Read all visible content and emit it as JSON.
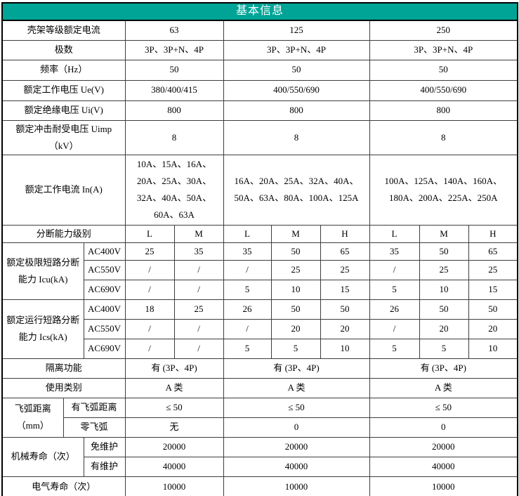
{
  "theme": {
    "header_bg": "#00A496",
    "header_text": "#ffffff",
    "border_color": "#3d3d3d",
    "outer_border": "#000000",
    "text_color": "#000000",
    "page_bg": "#ffffff"
  },
  "table": {
    "title": "基本信息",
    "frame_ratings": [
      "63",
      "125",
      "250"
    ],
    "rows": [
      [
        {
          "t": "壳架等级额定电流",
          "c": 3,
          "cls": "label"
        },
        {
          "t": "63",
          "c": 2
        },
        {
          "t": "125",
          "c": 3
        },
        {
          "t": "250",
          "c": 3
        }
      ],
      [
        {
          "t": "极数",
          "c": 3,
          "cls": "label"
        },
        {
          "t": "3P、3P+N、4P",
          "c": 2
        },
        {
          "t": "3P、3P+N、4P",
          "c": 3
        },
        {
          "t": "3P、3P+N、4P",
          "c": 3
        }
      ],
      [
        {
          "t": "频率（Hz）",
          "c": 3,
          "cls": "label"
        },
        {
          "t": "50",
          "c": 2
        },
        {
          "t": "50",
          "c": 3
        },
        {
          "t": "50",
          "c": 3
        }
      ],
      [
        {
          "t": "额定工作电压 Ue(V)",
          "c": 3,
          "cls": "label"
        },
        {
          "t": "380/400/415",
          "c": 2
        },
        {
          "t": "400/550/690",
          "c": 3
        },
        {
          "t": "400/550/690",
          "c": 3
        }
      ],
      [
        {
          "t": "额定绝缘电压 Ui(V)",
          "c": 3,
          "cls": "label"
        },
        {
          "t": "800",
          "c": 2
        },
        {
          "t": "800",
          "c": 3
        },
        {
          "t": "800",
          "c": 3
        }
      ],
      [
        {
          "t": "额定冲击耐受电压 Uimp （kV）",
          "c": 3,
          "cls": "label"
        },
        {
          "t": "8",
          "c": 2
        },
        {
          "t": "8",
          "c": 3
        },
        {
          "t": "8",
          "c": 3
        }
      ],
      [
        {
          "t": "额定工作电流 In(A)",
          "c": 3,
          "cls": "label"
        },
        {
          "t": "10A、15A、16A、20A、25A、30A、32A、40A、50A、60A、63A",
          "c": 2
        },
        {
          "t": "16A、20A、25A、32A、40A、50A、63A、80A、100A、125A",
          "c": 3
        },
        {
          "t": "100A、125A、140A、160A、180A、200A、225A、250A",
          "c": 3
        }
      ],
      [
        {
          "t": "分断能力级别",
          "c": 3,
          "cls": "label"
        },
        {
          "t": "L"
        },
        {
          "t": "M"
        },
        {
          "t": "L"
        },
        {
          "t": "M"
        },
        {
          "t": "H"
        },
        {
          "t": "L"
        },
        {
          "t": "M"
        },
        {
          "t": "H"
        }
      ],
      [
        {
          "t": "额定极限短路分断能力 Icu(kA)",
          "c": 2,
          "r": 3,
          "cls": "label"
        },
        {
          "t": "AC400V",
          "cls": "sublabel"
        },
        {
          "t": "25"
        },
        {
          "t": "35"
        },
        {
          "t": "35"
        },
        {
          "t": "50"
        },
        {
          "t": "65"
        },
        {
          "t": "35"
        },
        {
          "t": "50"
        },
        {
          "t": "65"
        }
      ],
      [
        {
          "t": "AC550V",
          "cls": "sublabel"
        },
        {
          "t": "/"
        },
        {
          "t": "/"
        },
        {
          "t": "/"
        },
        {
          "t": "25"
        },
        {
          "t": "25"
        },
        {
          "t": "/"
        },
        {
          "t": "25"
        },
        {
          "t": "25"
        }
      ],
      [
        {
          "t": "AC690V",
          "cls": "sublabel"
        },
        {
          "t": "/"
        },
        {
          "t": "/"
        },
        {
          "t": "5"
        },
        {
          "t": "10"
        },
        {
          "t": "15"
        },
        {
          "t": "5"
        },
        {
          "t": "10"
        },
        {
          "t": "15"
        }
      ],
      [
        {
          "t": "额定运行短路分断能力 Ics(kA)",
          "c": 2,
          "r": 3,
          "cls": "label"
        },
        {
          "t": "AC400V",
          "cls": "sublabel"
        },
        {
          "t": "18"
        },
        {
          "t": "25"
        },
        {
          "t": "26"
        },
        {
          "t": "50"
        },
        {
          "t": "50"
        },
        {
          "t": "26"
        },
        {
          "t": "50"
        },
        {
          "t": "50"
        }
      ],
      [
        {
          "t": "AC550V",
          "cls": "sublabel"
        },
        {
          "t": "/"
        },
        {
          "t": "/"
        },
        {
          "t": "/"
        },
        {
          "t": "20"
        },
        {
          "t": "20"
        },
        {
          "t": "/"
        },
        {
          "t": "20"
        },
        {
          "t": "20"
        }
      ],
      [
        {
          "t": "AC690V",
          "cls": "sublabel"
        },
        {
          "t": "/"
        },
        {
          "t": "/"
        },
        {
          "t": "5"
        },
        {
          "t": "5"
        },
        {
          "t": "10"
        },
        {
          "t": "5"
        },
        {
          "t": "5"
        },
        {
          "t": "10"
        }
      ],
      [
        {
          "t": "隔离功能",
          "c": 3,
          "cls": "label"
        },
        {
          "t": "有 (3P、4P)",
          "c": 2
        },
        {
          "t": "有 (3P、4P)",
          "c": 3
        },
        {
          "t": "有 (3P、4P)",
          "c": 3
        }
      ],
      [
        {
          "t": "使用类别",
          "c": 3,
          "cls": "label"
        },
        {
          "t": "A 类",
          "c": 2
        },
        {
          "t": "A 类",
          "c": 3
        },
        {
          "t": "A 类",
          "c": 3
        }
      ],
      [
        {
          "t": "飞弧距离（mm）",
          "c": 1,
          "r": 2,
          "cls": "label"
        },
        {
          "t": "有飞弧距离",
          "c": 2,
          "cls": "sublabel"
        },
        {
          "t": "≤ 50",
          "c": 2
        },
        {
          "t": "≤ 50",
          "c": 3
        },
        {
          "t": "≤ 50",
          "c": 3
        }
      ],
      [
        {
          "t": "零飞弧",
          "c": 2,
          "cls": "sublabel"
        },
        {
          "t": "无",
          "c": 2
        },
        {
          "t": "0",
          "c": 3
        },
        {
          "t": "0",
          "c": 3
        }
      ],
      [
        {
          "t": "机械寿命（次）",
          "c": 2,
          "r": 2,
          "cls": "label"
        },
        {
          "t": "免维护",
          "cls": "sublabel"
        },
        {
          "t": "20000",
          "c": 2
        },
        {
          "t": "20000",
          "c": 3
        },
        {
          "t": "20000",
          "c": 3
        }
      ],
      [
        {
          "t": "有维护",
          "cls": "sublabel"
        },
        {
          "t": "40000",
          "c": 2
        },
        {
          "t": "40000",
          "c": 3
        },
        {
          "t": "40000",
          "c": 3
        }
      ],
      [
        {
          "t": "电气寿命（次）",
          "c": 3,
          "cls": "label"
        },
        {
          "t": "10000",
          "c": 2
        },
        {
          "t": "10000",
          "c": 3
        },
        {
          "t": "10000",
          "c": 3
        }
      ]
    ]
  }
}
